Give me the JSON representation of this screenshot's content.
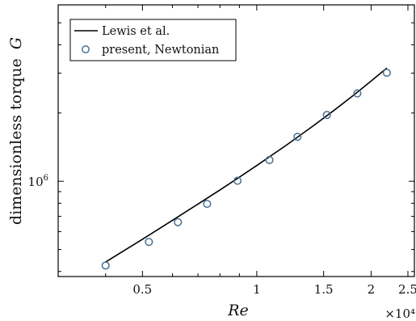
{
  "chart_data": {
    "type": "line",
    "title": "",
    "xlabel": "Re",
    "ylabel": "dimensionless torque",
    "ylabel_symbol": "G",
    "x_multiplier_label": "×10⁴",
    "xscale": "log",
    "yscale": "log",
    "xlim": [
      0.3,
      2.6
    ],
    "ylim": [
      380000,
      6000000
    ],
    "x_ticks": [
      {
        "value": 0.5,
        "label": "0.5"
      },
      {
        "value": 1,
        "label": "1"
      },
      {
        "value": 1.5,
        "label": "1.5"
      },
      {
        "value": 2,
        "label": "2"
      },
      {
        "value": 2.5,
        "label": "2.5"
      }
    ],
    "y_ticks": [
      {
        "value": 1000000,
        "label": "10",
        "exponent": "6"
      }
    ],
    "grid": false,
    "legend_position": "top-left",
    "series": [
      {
        "name": "Lewis et al.",
        "style": "line",
        "color": "#000000",
        "x": [
          0.4,
          0.5,
          0.6,
          0.7,
          0.8,
          0.9,
          1.0,
          1.2,
          1.4,
          1.6,
          1.8,
          2.0,
          2.2
        ],
        "y": [
          440000,
          555000,
          673000,
          793000,
          916000,
          1043000,
          1173000,
          1448000,
          1743000,
          2060000,
          2400000,
          2765000,
          3160000
        ]
      },
      {
        "name": "present, Newtonian",
        "style": "marker",
        "color": "#4a6e94",
        "x": [
          0.4,
          0.52,
          0.62,
          0.74,
          0.89,
          1.08,
          1.28,
          1.53,
          1.84,
          2.2
        ],
        "y": [
          425000,
          540000,
          660000,
          795000,
          1005000,
          1240000,
          1570000,
          1960000,
          2440000,
          3010000
        ]
      }
    ]
  }
}
